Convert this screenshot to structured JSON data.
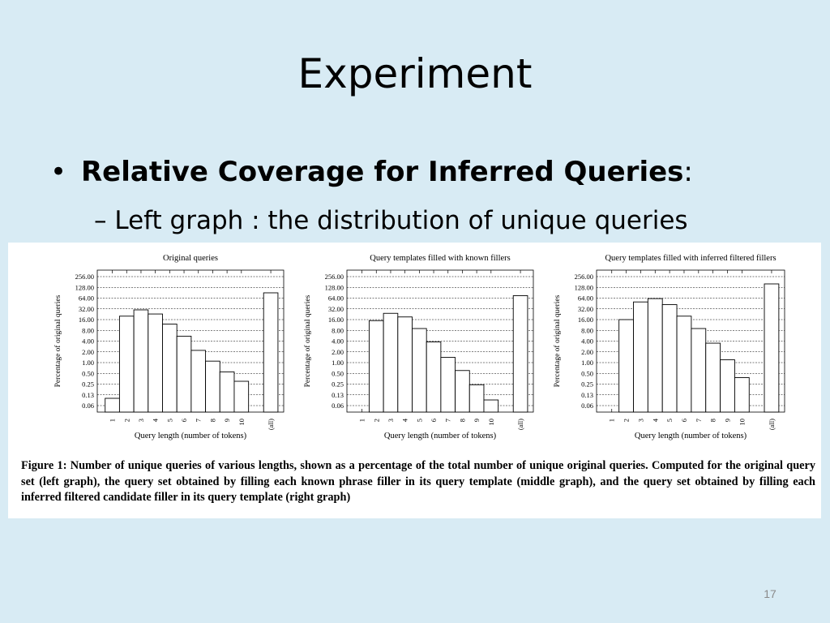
{
  "slide": {
    "title": "Experiment",
    "bullet": {
      "marker": "•",
      "bold": "Relative Coverage for Inferred Queries",
      "suffix": ":"
    },
    "sub_bullet": "– Left graph :  the distribution of unique queries",
    "page_number": "17"
  },
  "figure": {
    "caption": "Figure 1:  Number of unique queries of various lengths, shown as a percentage of the total number of unique original queries. Computed for the original query set (left graph), the query set obtained by filling each known phrase filler in its query template (middle graph), and the query set obtained by filling each inferred filtered candidate filler in its query template (right graph)"
  },
  "chart_data": [
    {
      "type": "bar",
      "title": "Original queries",
      "xlabel": "Query length (number of tokens)",
      "ylabel": "Percentage of original queries",
      "y_scale": "log2",
      "yticks": [
        "256.00",
        "128.00",
        "64.00",
        "32.00",
        "16.00",
        "8.00",
        "4.00",
        "2.00",
        "1.00",
        "0.50",
        "0.25",
        "0.13",
        "0.06"
      ],
      "categories": [
        "1",
        "2",
        "3",
        "4",
        "5",
        "6",
        "7",
        "8",
        "9",
        "10",
        "(all)"
      ],
      "values": [
        0.1,
        20,
        30,
        23,
        12,
        5.5,
        2.2,
        1.1,
        0.55,
        0.3,
        90
      ]
    },
    {
      "type": "bar",
      "title": "Query templates filled with known fillers",
      "xlabel": "Query length (number of tokens)",
      "ylabel": "Percentage of original queries",
      "y_scale": "log2",
      "yticks": [
        "256.00",
        "128.00",
        "64.00",
        "32.00",
        "16.00",
        "8.00",
        "4.00",
        "2.00",
        "1.00",
        "0.50",
        "0.25",
        "0.13",
        "0.06"
      ],
      "categories": [
        "1",
        "2",
        "3",
        "4",
        "5",
        "6",
        "7",
        "8",
        "9",
        "10",
        "(all)"
      ],
      "values": [
        null,
        15,
        24,
        19,
        9,
        3.8,
        1.4,
        0.6,
        0.24,
        0.09,
        75
      ]
    },
    {
      "type": "bar",
      "title": "Query templates filled with inferred filtered fillers",
      "xlabel": "Query length (number of tokens)",
      "ylabel": "Percentage of original queries",
      "y_scale": "log2",
      "yticks": [
        "256.00",
        "128.00",
        "64.00",
        "32.00",
        "16.00",
        "8.00",
        "4.00",
        "2.00",
        "1.00",
        "0.50",
        "0.25",
        "0.13",
        "0.06"
      ],
      "categories": [
        "1",
        "2",
        "3",
        "4",
        "5",
        "6",
        "7",
        "8",
        "9",
        "10",
        "(all)"
      ],
      "values": [
        null,
        16,
        50,
        62,
        42,
        20,
        9,
        3.5,
        1.2,
        0.38,
        160
      ]
    }
  ]
}
